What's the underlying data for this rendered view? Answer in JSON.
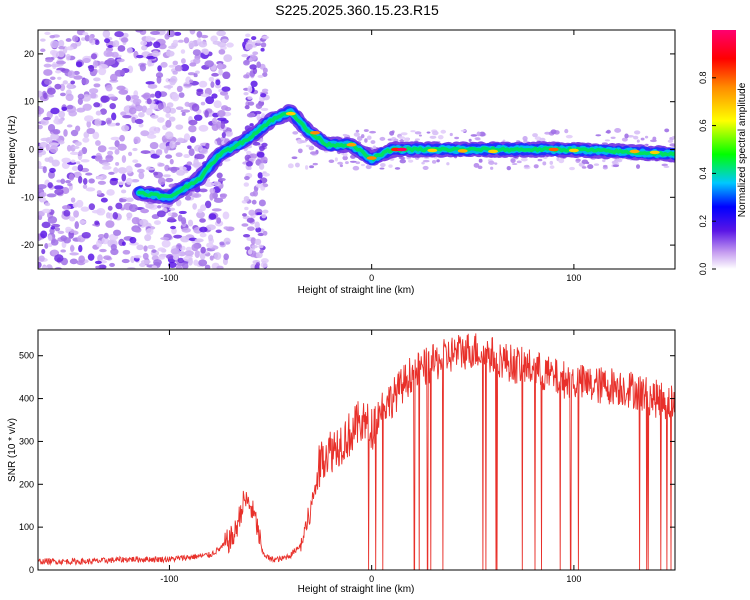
{
  "title": "S225.2025.360.15.23.R15",
  "chart_data": [
    {
      "type": "heatmap",
      "xlabel": "Height of straight line (km)",
      "ylabel": "Frequency (Hz)",
      "xlim": [
        -165,
        150
      ],
      "ylim": [
        -25,
        25
      ],
      "xticks": [
        -100,
        0,
        100
      ],
      "yticks": [
        -20,
        -10,
        0,
        10,
        20
      ],
      "colorbar": {
        "label": "Normalized spectral amplitude",
        "range": [
          0,
          1
        ],
        "ticks": [
          0.0,
          0.2,
          0.4,
          0.6,
          0.8
        ]
      },
      "ridge": [
        {
          "x": -115,
          "y": -9
        },
        {
          "x": -100,
          "y": -10
        },
        {
          "x": -85,
          "y": -6
        },
        {
          "x": -75,
          "y": -1
        },
        {
          "x": -62,
          "y": 2
        },
        {
          "x": -50,
          "y": 6
        },
        {
          "x": -40,
          "y": 8
        },
        {
          "x": -32,
          "y": 4
        },
        {
          "x": -22,
          "y": 1
        },
        {
          "x": -10,
          "y": 1
        },
        {
          "x": 0,
          "y": -2
        },
        {
          "x": 10,
          "y": 0
        },
        {
          "x": 20,
          "y": 0
        },
        {
          "x": 60,
          "y": 0
        },
        {
          "x": 100,
          "y": 0
        },
        {
          "x": 150,
          "y": -1
        }
      ]
    },
    {
      "type": "line",
      "xlabel": "Height of straight line (km)",
      "ylabel": "SNR (10 * v/v)",
      "xlim": [
        -165,
        150
      ],
      "ylim": [
        0,
        560
      ],
      "xticks": [
        -100,
        0,
        100
      ],
      "yticks": [
        0,
        100,
        200,
        300,
        400,
        500
      ],
      "color": "#e8302a",
      "series": [
        {
          "x": [
            -165,
            -140,
            -120,
            -100,
            -90,
            -80,
            -75,
            -68,
            -63,
            -60,
            -57,
            -54,
            -50,
            -45,
            -40,
            -35,
            -30,
            -27,
            -24,
            -20,
            -15,
            -10,
            -5,
            0,
            5,
            10,
            15,
            20,
            25,
            30,
            40,
            50,
            60,
            70,
            80,
            90,
            100,
            110,
            120,
            130,
            140,
            150
          ],
          "values": [
            20,
            20,
            25,
            25,
            30,
            35,
            50,
            80,
            165,
            150,
            110,
            40,
            25,
            25,
            35,
            60,
            140,
            220,
            270,
            280,
            300,
            320,
            350,
            330,
            380,
            400,
            430,
            460,
            470,
            480,
            505,
            515,
            500,
            480,
            470,
            450,
            440,
            430,
            430,
            420,
            400,
            390
          ]
        }
      ]
    }
  ]
}
